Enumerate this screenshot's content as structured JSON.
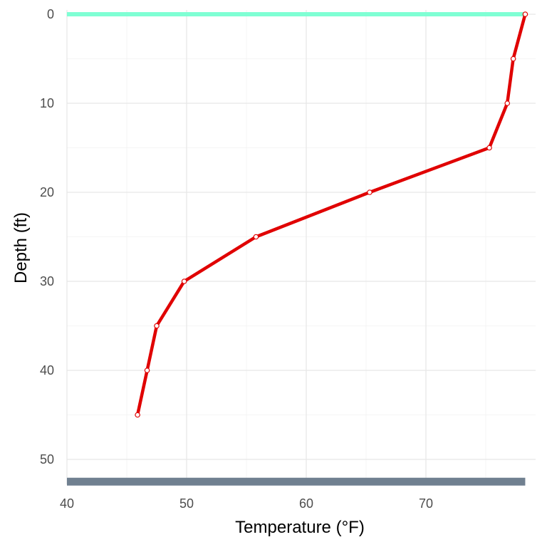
{
  "chart_data": {
    "type": "line",
    "xlabel": "Temperature (°F)",
    "ylabel": "Depth (ft)",
    "xlim": [
      40,
      78.4
    ],
    "ylim": [
      0,
      53
    ],
    "y_reversed": true,
    "x_ticks": [
      "40",
      "50",
      "60",
      "70"
    ],
    "y_ticks": [
      "0",
      "10",
      "20",
      "30",
      "40",
      "50"
    ],
    "grid": true,
    "series": [
      {
        "color": "#e00000",
        "points": [
          {
            "x": 78.3,
            "y": 0
          },
          {
            "x": 77.3,
            "y": 5
          },
          {
            "x": 76.8,
            "y": 10
          },
          {
            "x": 75.3,
            "y": 15
          },
          {
            "x": 65.3,
            "y": 20
          },
          {
            "x": 55.8,
            "y": 25
          },
          {
            "x": 49.8,
            "y": 30
          },
          {
            "x": 47.5,
            "y": 35
          },
          {
            "x": 46.7,
            "y": 40
          },
          {
            "x": 45.9,
            "y": 45
          }
        ]
      }
    ],
    "reference_lines": [
      {
        "kind": "surface",
        "y": 0,
        "color": "#7fffd4"
      },
      {
        "kind": "bottom",
        "y": 52.5,
        "color": "#708090"
      }
    ]
  }
}
